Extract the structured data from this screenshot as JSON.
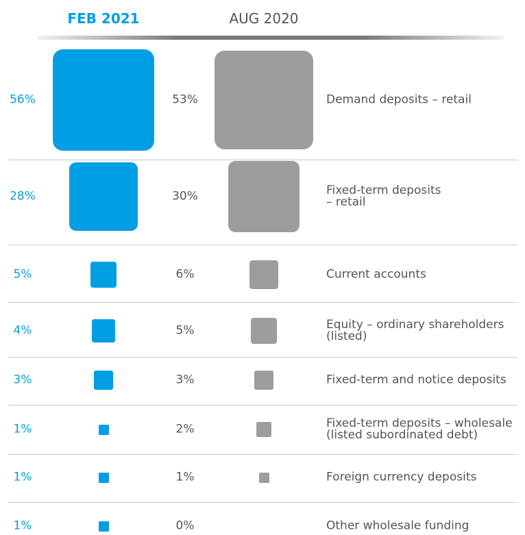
{
  "chart_data": {
    "type": "square",
    "categories": [
      "Demand deposits – retail",
      "Fixed-term deposits\n– retail",
      "Current accounts",
      "Equity – ordinary shareholders\n(listed)",
      "Fixed-term and notice deposits",
      "Fixed-term deposits – wholesale\n(listed subordinated debt)",
      "Foreign currency deposits",
      "Other wholesale funding"
    ],
    "series": [
      {
        "name": "FEB 2021",
        "color": "#009fe3",
        "values": [
          56,
          28,
          5,
          4,
          3,
          1,
          1,
          1
        ],
        "value_labels": [
          "56%",
          "28%",
          "5%",
          "4%",
          "3%",
          "1%",
          "1%",
          "1%"
        ]
      },
      {
        "name": "AUG 2020",
        "color": "#9d9d9c",
        "values": [
          53,
          30,
          6,
          5,
          3,
          2,
          1,
          0
        ],
        "value_labels": [
          "53%",
          "30%",
          "6%",
          "5%",
          "3%",
          "2%",
          "1%",
          "0%"
        ]
      }
    ]
  }
}
